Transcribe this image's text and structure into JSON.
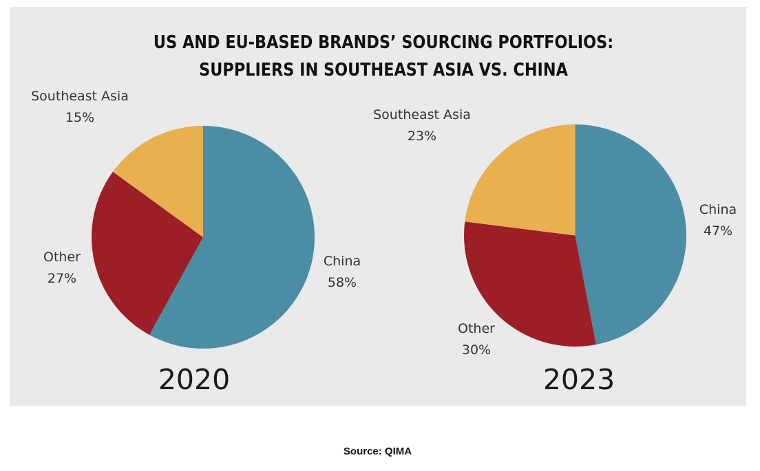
{
  "title": {
    "line1": "US AND EU-BASED BRANDS’ SOURCING PORTFOLIOS:",
    "line2": "SUPPLIERS IN SOUTHEAST ASIA VS. CHINA"
  },
  "colors": {
    "china": "#4a8da5",
    "other": "#9c1f27",
    "southeast_asia": "#e8b04f",
    "panel_background": "#eaeaea"
  },
  "pies": [
    {
      "year": "2020",
      "slices": [
        {
          "name": "China",
          "pct_label": "58%"
        },
        {
          "name": "Other",
          "pct_label": "27%"
        },
        {
          "name": "Southeast Asia",
          "pct_label": "15%"
        }
      ]
    },
    {
      "year": "2023",
      "slices": [
        {
          "name": "China",
          "pct_label": "47%"
        },
        {
          "name": "Other",
          "pct_label": "30%"
        },
        {
          "name": "Southeast Asia",
          "pct_label": "23%"
        }
      ]
    }
  ],
  "source": "Source: QIMA",
  "chart_data": [
    {
      "type": "pie",
      "title": "US AND EU-BASED BRANDS’ SOURCING PORTFOLIOS: SUPPLIERS IN SOUTHEAST ASIA VS. CHINA",
      "subtitle": "2020",
      "categories": [
        "China",
        "Other",
        "Southeast Asia"
      ],
      "values": [
        58,
        27,
        15
      ],
      "colors": [
        "#4a8da5",
        "#9c1f27",
        "#e8b04f"
      ],
      "start_angle": "12 o'clock, clockwise",
      "legend": "none (direct labels)"
    },
    {
      "type": "pie",
      "title": "US AND EU-BASED BRANDS’ SOURCING PORTFOLIOS: SUPPLIERS IN SOUTHEAST ASIA VS. CHINA",
      "subtitle": "2023",
      "categories": [
        "China",
        "Other",
        "Southeast Asia"
      ],
      "values": [
        47,
        30,
        23
      ],
      "colors": [
        "#4a8da5",
        "#9c1f27",
        "#e8b04f"
      ],
      "start_angle": "12 o'clock, clockwise",
      "legend": "none (direct labels)"
    }
  ]
}
